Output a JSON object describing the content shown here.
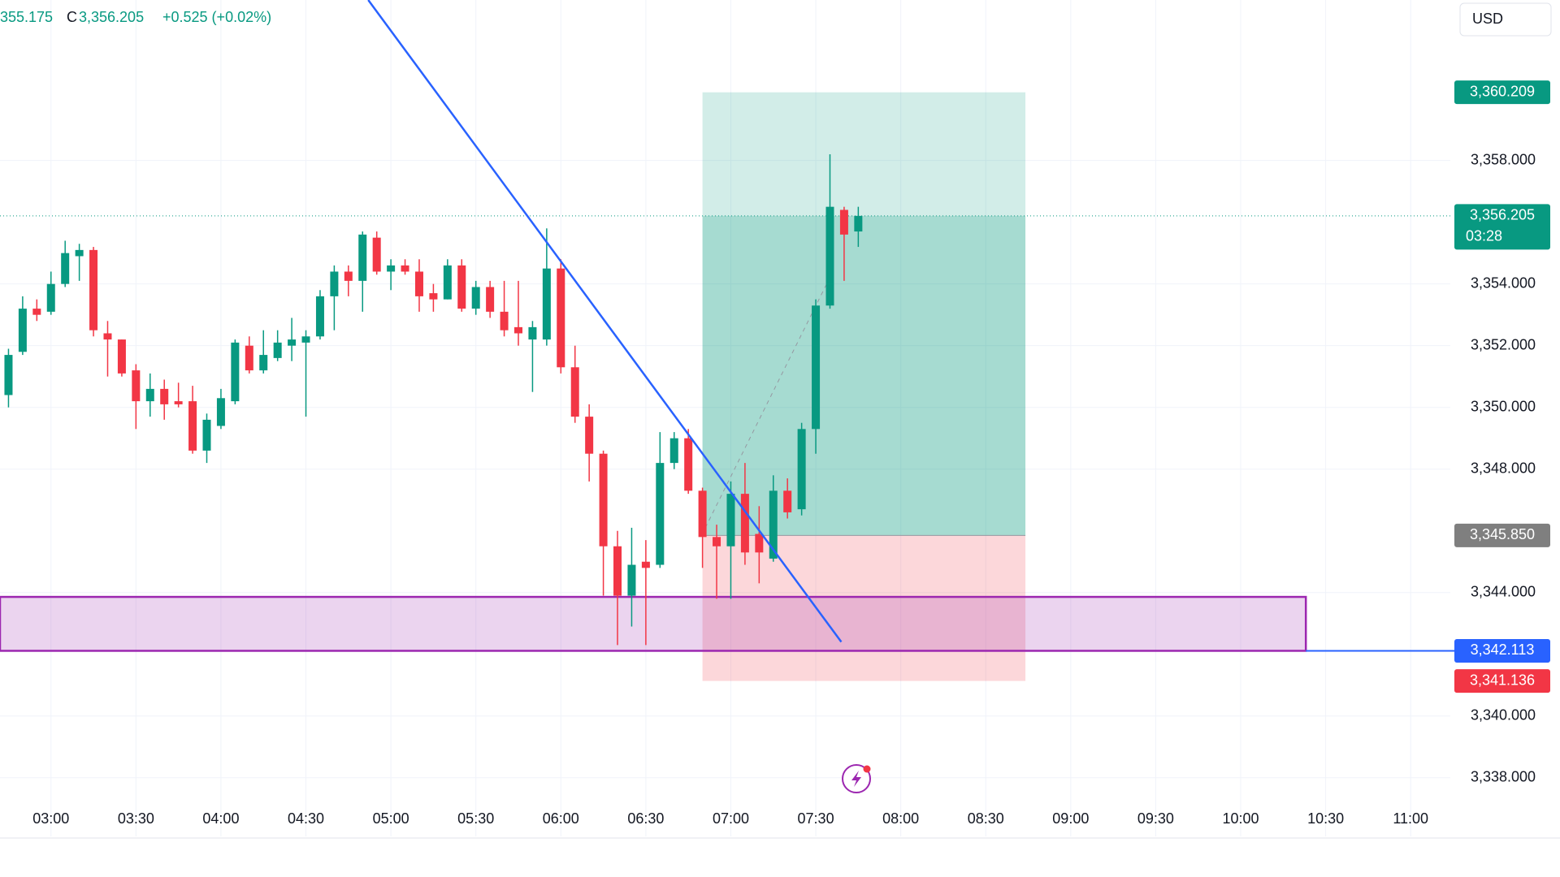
{
  "chart_data": {
    "type": "candlestick",
    "header": {
      "open_partial": "355.175",
      "close_label": "C",
      "close": "3,356.205",
      "change": "+0.525 (+0.02%)"
    },
    "currency": "USD",
    "up_color": "#089981",
    "down_color": "#f23645",
    "x": [
      "02:45",
      "02:50",
      "02:55",
      "03:00",
      "03:05",
      "03:10",
      "03:15",
      "03:20",
      "03:25",
      "03:30",
      "03:35",
      "03:40",
      "03:45",
      "03:50",
      "03:55",
      "04:00",
      "04:05",
      "04:10",
      "04:15",
      "04:20",
      "04:25",
      "04:30",
      "04:35",
      "04:40",
      "04:45",
      "04:50",
      "04:55",
      "05:00",
      "05:05",
      "05:10",
      "05:15",
      "05:20",
      "05:25",
      "05:30",
      "05:35",
      "05:40",
      "05:45",
      "05:50",
      "05:55",
      "06:00",
      "06:05",
      "06:10",
      "06:15",
      "06:20",
      "06:25",
      "06:30",
      "06:35",
      "06:40",
      "06:45",
      "06:50",
      "06:55",
      "07:00",
      "07:05",
      "07:10",
      "07:15",
      "07:20",
      "07:25",
      "07:30",
      "07:35",
      "07:40",
      "07:45"
    ],
    "open": [
      3350.4,
      3351.8,
      3353.2,
      3353.1,
      3354.0,
      3354.9,
      3355.1,
      3352.4,
      3352.2,
      3351.2,
      3350.2,
      3350.6,
      3350.2,
      3350.2,
      3348.6,
      3349.4,
      3350.2,
      3352.0,
      3351.2,
      3351.6,
      3352.0,
      3352.1,
      3352.3,
      3353.6,
      3354.4,
      3354.1,
      3355.5,
      3354.4,
      3354.6,
      3354.4,
      3353.7,
      3353.5,
      3354.6,
      3353.2,
      3353.9,
      3353.1,
      3352.6,
      3352.2,
      3352.2,
      3354.5,
      3351.3,
      3349.7,
      3348.5,
      3345.5,
      3343.9,
      3345.0,
      3344.9,
      3348.2,
      3349.0,
      3347.3,
      3345.8,
      3345.5,
      3347.2,
      3345.9,
      3345.1,
      3347.3,
      3346.7,
      3349.3,
      3353.3,
      3356.4,
      3355.7
    ],
    "high": [
      3351.9,
      3353.6,
      3353.5,
      3354.4,
      3355.4,
      3355.3,
      3355.2,
      3352.8,
      3352.2,
      3351.4,
      3351.1,
      3350.9,
      3350.8,
      3350.7,
      3349.8,
      3350.6,
      3352.2,
      3352.3,
      3352.5,
      3352.5,
      3352.9,
      3352.5,
      3353.8,
      3354.6,
      3354.6,
      3355.7,
      3355.7,
      3354.8,
      3354.8,
      3354.8,
      3354.0,
      3354.8,
      3354.8,
      3354.1,
      3354.1,
      3354.1,
      3354.1,
      3352.8,
      3355.8,
      3354.8,
      3352.0,
      3350.1,
      3348.6,
      3346.0,
      3346.1,
      3345.7,
      3349.2,
      3349.2,
      3349.3,
      3347.4,
      3346.2,
      3347.6,
      3348.2,
      3346.8,
      3347.8,
      3347.7,
      3349.5,
      3353.5,
      3358.2,
      3356.5,
      3356.5
    ],
    "low": [
      3350.0,
      3351.7,
      3352.8,
      3353.0,
      3353.9,
      3354.1,
      3352.3,
      3351.0,
      3351.0,
      3349.3,
      3349.7,
      3349.6,
      3350.0,
      3348.5,
      3348.2,
      3349.3,
      3350.1,
      3351.1,
      3351.1,
      3351.5,
      3351.5,
      3349.7,
      3352.2,
      3352.5,
      3353.6,
      3353.1,
      3354.3,
      3353.8,
      3354.3,
      3353.1,
      3353.1,
      3353.5,
      3353.1,
      3353.0,
      3352.9,
      3352.3,
      3352.0,
      3350.5,
      3352.0,
      3351.1,
      3349.5,
      3347.6,
      3343.9,
      3342.3,
      3342.9,
      3342.3,
      3344.8,
      3348.0,
      3347.2,
      3344.8,
      3343.8,
      3343.8,
      3344.9,
      3344.3,
      3345.0,
      3346.4,
      3346.5,
      3348.5,
      3353.2,
      3354.1,
      3355.2
    ],
    "close": [
      3351.7,
      3353.2,
      3353.0,
      3354.0,
      3355.0,
      3355.1,
      3352.5,
      3352.2,
      3351.1,
      3350.2,
      3350.6,
      3350.1,
      3350.1,
      3348.6,
      3349.6,
      3350.3,
      3352.1,
      3351.2,
      3351.7,
      3352.1,
      3352.2,
      3352.3,
      3353.6,
      3354.4,
      3354.1,
      3355.6,
      3354.4,
      3354.6,
      3354.4,
      3353.6,
      3353.5,
      3354.6,
      3353.2,
      3353.9,
      3353.1,
      3352.5,
      3352.4,
      3352.6,
      3354.5,
      3351.3,
      3349.7,
      3348.5,
      3345.5,
      3343.9,
      3344.9,
      3344.8,
      3348.2,
      3349.0,
      3347.3,
      3345.8,
      3345.5,
      3347.2,
      3345.3,
      3345.3,
      3347.3,
      3346.6,
      3349.3,
      3353.3,
      3356.5,
      3355.6,
      3356.205
    ],
    "xlim": [
      "02:42",
      "11:14"
    ],
    "xticks": [
      "03:00",
      "03:30",
      "04:00",
      "04:30",
      "05:00",
      "05:30",
      "06:00",
      "06:30",
      "07:00",
      "07:30",
      "08:00",
      "08:30",
      "09:00",
      "09:30",
      "10:00",
      "10:30",
      "11:00"
    ],
    "ylim": [
      3336.1,
      3363.2
    ],
    "yticks": [
      {
        "value": 3338,
        "label": "3,338.000"
      },
      {
        "value": 3340,
        "label": "3,340.000"
      },
      {
        "value": 3344,
        "label": "3,344.000"
      },
      {
        "value": 3348,
        "label": "3,348.000"
      },
      {
        "value": 3350,
        "label": "3,350.000"
      },
      {
        "value": 3352,
        "label": "3,352.000"
      },
      {
        "value": 3354,
        "label": "3,354.000"
      },
      {
        "value": 3358,
        "label": "3,358.000"
      }
    ],
    "grid": true,
    "price_labels": [
      {
        "value": 3360.209,
        "label": "3,360.209",
        "color": "#089981"
      },
      {
        "value": 3356.205,
        "label": "3,356.205",
        "sublabel": "03:28",
        "color": "#089981"
      },
      {
        "value": 3345.85,
        "label": "3,345.850",
        "color": "#7f7f7f"
      },
      {
        "value": 3342.113,
        "label": "3,342.113",
        "color": "#2962ff"
      },
      {
        "value": 3341.136,
        "label": "3,341.136",
        "color": "#f23645"
      }
    ],
    "trend_line": {
      "x": [
        "04:52",
        "07:39"
      ],
      "y": [
        3363.2,
        3342.4
      ],
      "color": "#2962ff"
    },
    "position": {
      "x": [
        "06:50",
        "08:44"
      ],
      "entry": 3345.85,
      "target": 3360.209,
      "stop": 3341.136,
      "current": 3356.205,
      "path_x": [
        "06:51",
        "07:36"
      ],
      "path_y": [
        3346.1,
        3354.4
      ]
    },
    "zone": {
      "x": [
        "02:42",
        "10:23"
      ],
      "top": 3343.86,
      "bottom": 3342.113,
      "color": "#9c27b0",
      "line_color": "#2962ff"
    }
  }
}
